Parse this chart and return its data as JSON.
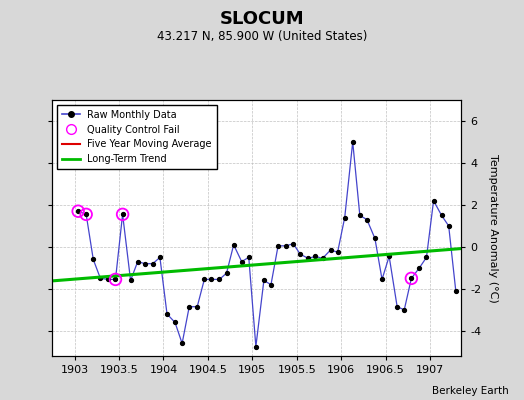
{
  "title": "SLOCUM",
  "subtitle": "43.217 N, 85.900 W (United States)",
  "attribution": "Berkeley Earth",
  "ylabel": "Temperature Anomaly (°C)",
  "xlim": [
    1902.75,
    1907.35
  ],
  "ylim": [
    -5.2,
    7.0
  ],
  "yticks": [
    -4,
    -2,
    0,
    2,
    4,
    6
  ],
  "xticks": [
    1903,
    1903.5,
    1904,
    1904.5,
    1905,
    1905.5,
    1906,
    1906.5,
    1907
  ],
  "background_color": "#d8d8d8",
  "plot_bg_color": "#ffffff",
  "raw_x": [
    1903.04,
    1903.13,
    1903.21,
    1903.29,
    1903.38,
    1903.46,
    1903.54,
    1903.63,
    1903.71,
    1903.79,
    1903.88,
    1903.96,
    1904.04,
    1904.13,
    1904.21,
    1904.29,
    1904.38,
    1904.46,
    1904.54,
    1904.63,
    1904.71,
    1904.79,
    1904.88,
    1904.96,
    1905.04,
    1905.13,
    1905.21,
    1905.29,
    1905.38,
    1905.46,
    1905.54,
    1905.63,
    1905.71,
    1905.79,
    1905.88,
    1905.96,
    1906.04,
    1906.13,
    1906.21,
    1906.29,
    1906.38,
    1906.46,
    1906.54,
    1906.63,
    1906.71,
    1906.79,
    1906.88,
    1906.96,
    1907.04,
    1907.13,
    1907.21,
    1907.29
  ],
  "raw_y": [
    1.7,
    1.55,
    -0.6,
    -1.5,
    -1.55,
    -1.55,
    1.55,
    -1.6,
    -0.7,
    -0.8,
    -0.8,
    -0.5,
    -3.2,
    -3.6,
    -4.6,
    -2.85,
    -2.85,
    -1.55,
    -1.55,
    -1.55,
    -1.25,
    0.1,
    -0.7,
    -0.5,
    -4.75,
    -1.6,
    -1.8,
    0.05,
    0.05,
    0.15,
    -0.35,
    -0.55,
    -0.45,
    -0.55,
    -0.15,
    -0.25,
    1.4,
    5.0,
    1.5,
    1.3,
    0.4,
    -1.55,
    -0.45,
    -2.85,
    -3.0,
    -1.5,
    -1.0,
    -0.5,
    2.2,
    1.5,
    1.0,
    -2.1
  ],
  "qc_fail_x": [
    1903.04,
    1903.13,
    1903.46,
    1903.54,
    1906.79
  ],
  "qc_fail_y": [
    1.7,
    1.55,
    -1.55,
    1.55,
    -1.5
  ],
  "trend_x": [
    1902.75,
    1907.35
  ],
  "trend_y": [
    -1.62,
    -0.08
  ],
  "line_color": "#4444cc",
  "dot_color": "#000000",
  "qc_color": "#ff00ff",
  "trend_color": "#00bb00",
  "moving_avg_color": "#dd0000",
  "grid_color": "#bbbbbb"
}
